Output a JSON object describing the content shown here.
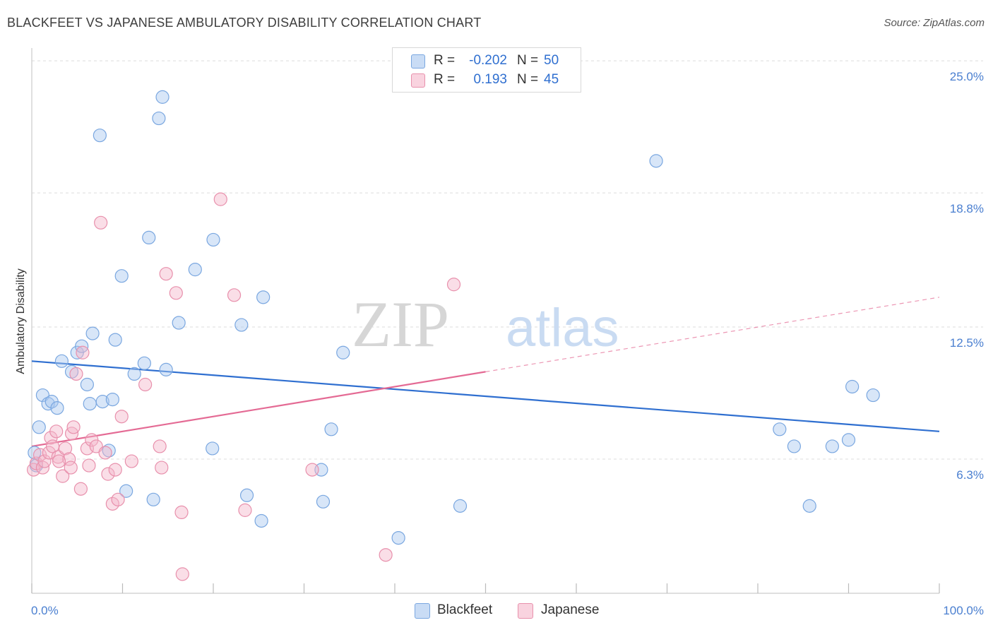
{
  "header": {
    "title": "BLACKFEET VS JAPANESE AMBULATORY DISABILITY CORRELATION CHART",
    "source": "Source: ZipAtlas.com"
  },
  "watermark": {
    "zip": "ZIP",
    "atlas": "atlas"
  },
  "legend_top": {
    "rows": [
      {
        "r_label": "R =",
        "r_value": "-0.202",
        "n_label": "N =",
        "n_value": "50",
        "color": "#a9c8f0"
      },
      {
        "r_label": "R =",
        "r_value": "0.193",
        "n_label": "N =",
        "n_value": "45",
        "color": "#f4b6c9"
      }
    ]
  },
  "legend_bottom": {
    "items": [
      {
        "label": "Blackfeet",
        "color": "#a9c8f0"
      },
      {
        "label": "Japanese",
        "color": "#f4b6c9"
      }
    ]
  },
  "colors": {
    "blackfeet_fill": "#a9c8f0",
    "blackfeet_stroke": "#7aa7e0",
    "blackfeet_line": "#2f6fd0",
    "japanese_fill": "#f4b6c9",
    "japanese_stroke": "#e890ac",
    "japanese_line": "#e46a94",
    "grid": "#dcdcdc",
    "tick_label": "#4a7fd0"
  },
  "chart_data": {
    "type": "scatter",
    "title": "BLACKFEET VS JAPANESE AMBULATORY DISABILITY CORRELATION CHART",
    "xlabel": "",
    "ylabel": "Ambulatory Disability",
    "xlim": [
      0,
      100
    ],
    "ylim": [
      0,
      25.8
    ],
    "x_tick_labels": [
      "0.0%",
      "100.0%"
    ],
    "y_ticks": [
      {
        "value": 6.3,
        "label": "6.3%"
      },
      {
        "value": 12.5,
        "label": "12.5%"
      },
      {
        "value": 18.8,
        "label": "18.8%"
      },
      {
        "value": 25.0,
        "label": "25.0%"
      }
    ],
    "grid": true,
    "legend_position": "top-center",
    "series": [
      {
        "name": "Blackfeet",
        "r": -0.202,
        "n": 50,
        "trend": {
          "x": [
            0,
            100
          ],
          "y": [
            10.9,
            7.6
          ]
        },
        "points": [
          [
            0.3,
            6.6
          ],
          [
            0.8,
            7.8
          ],
          [
            1.2,
            9.3
          ],
          [
            1.8,
            8.9
          ],
          [
            2.2,
            9.0
          ],
          [
            2.8,
            8.7
          ],
          [
            3.3,
            10.9
          ],
          [
            4.4,
            10.4
          ],
          [
            5.0,
            11.3
          ],
          [
            5.5,
            11.6
          ],
          [
            6.1,
            9.8
          ],
          [
            6.4,
            8.9
          ],
          [
            6.7,
            12.2
          ],
          [
            7.5,
            21.5
          ],
          [
            7.8,
            9.0
          ],
          [
            8.5,
            6.7
          ],
          [
            8.9,
            9.1
          ],
          [
            9.2,
            11.9
          ],
          [
            9.9,
            14.9
          ],
          [
            10.4,
            4.8
          ],
          [
            11.3,
            10.3
          ],
          [
            12.4,
            10.8
          ],
          [
            12.9,
            16.7
          ],
          [
            13.4,
            4.4
          ],
          [
            14.0,
            22.3
          ],
          [
            14.4,
            23.3
          ],
          [
            14.8,
            10.5
          ],
          [
            16.2,
            12.7
          ],
          [
            18.0,
            15.2
          ],
          [
            19.9,
            6.8
          ],
          [
            20.0,
            16.6
          ],
          [
            23.1,
            12.6
          ],
          [
            23.7,
            4.6
          ],
          [
            25.3,
            3.4
          ],
          [
            25.5,
            13.9
          ],
          [
            31.9,
            5.8
          ],
          [
            32.1,
            4.3
          ],
          [
            33.0,
            7.7
          ],
          [
            34.3,
            11.3
          ],
          [
            40.4,
            2.6
          ],
          [
            47.2,
            4.1
          ],
          [
            68.8,
            20.3
          ],
          [
            82.4,
            7.7
          ],
          [
            84.0,
            6.9
          ],
          [
            85.7,
            4.1
          ],
          [
            88.2,
            6.9
          ],
          [
            90.0,
            7.2
          ],
          [
            90.4,
            9.7
          ],
          [
            92.7,
            9.3
          ],
          [
            0.5,
            6.0
          ]
        ]
      },
      {
        "name": "Japanese",
        "r": 0.193,
        "n": 45,
        "trend": {
          "x": [
            0,
            50
          ],
          "y": [
            6.9,
            10.4
          ]
        },
        "trend_dashed": {
          "x": [
            50,
            100
          ],
          "y": [
            10.4,
            13.9
          ]
        },
        "points": [
          [
            0.2,
            5.8
          ],
          [
            0.5,
            6.1
          ],
          [
            0.9,
            6.5
          ],
          [
            1.2,
            5.9
          ],
          [
            1.4,
            6.2
          ],
          [
            1.9,
            6.6
          ],
          [
            2.1,
            7.3
          ],
          [
            2.3,
            6.9
          ],
          [
            2.7,
            7.6
          ],
          [
            2.9,
            6.4
          ],
          [
            3.4,
            5.5
          ],
          [
            3.7,
            6.8
          ],
          [
            4.1,
            6.3
          ],
          [
            4.3,
            5.9
          ],
          [
            4.4,
            7.5
          ],
          [
            4.6,
            7.8
          ],
          [
            4.9,
            10.3
          ],
          [
            5.4,
            4.9
          ],
          [
            5.6,
            11.3
          ],
          [
            6.1,
            6.8
          ],
          [
            6.3,
            6.0
          ],
          [
            6.6,
            7.2
          ],
          [
            7.1,
            6.9
          ],
          [
            7.6,
            17.4
          ],
          [
            8.1,
            6.6
          ],
          [
            8.4,
            5.6
          ],
          [
            8.9,
            4.2
          ],
          [
            9.2,
            5.8
          ],
          [
            9.5,
            4.4
          ],
          [
            9.9,
            8.3
          ],
          [
            11.0,
            6.2
          ],
          [
            12.5,
            9.8
          ],
          [
            14.1,
            6.9
          ],
          [
            14.3,
            5.9
          ],
          [
            14.8,
            15.0
          ],
          [
            15.9,
            14.1
          ],
          [
            16.5,
            3.8
          ],
          [
            16.6,
            0.9
          ],
          [
            20.8,
            18.5
          ],
          [
            22.3,
            14.0
          ],
          [
            23.5,
            3.9
          ],
          [
            30.9,
            5.8
          ],
          [
            39.0,
            1.8
          ],
          [
            46.5,
            14.5
          ],
          [
            3.0,
            6.2
          ]
        ]
      }
    ]
  }
}
